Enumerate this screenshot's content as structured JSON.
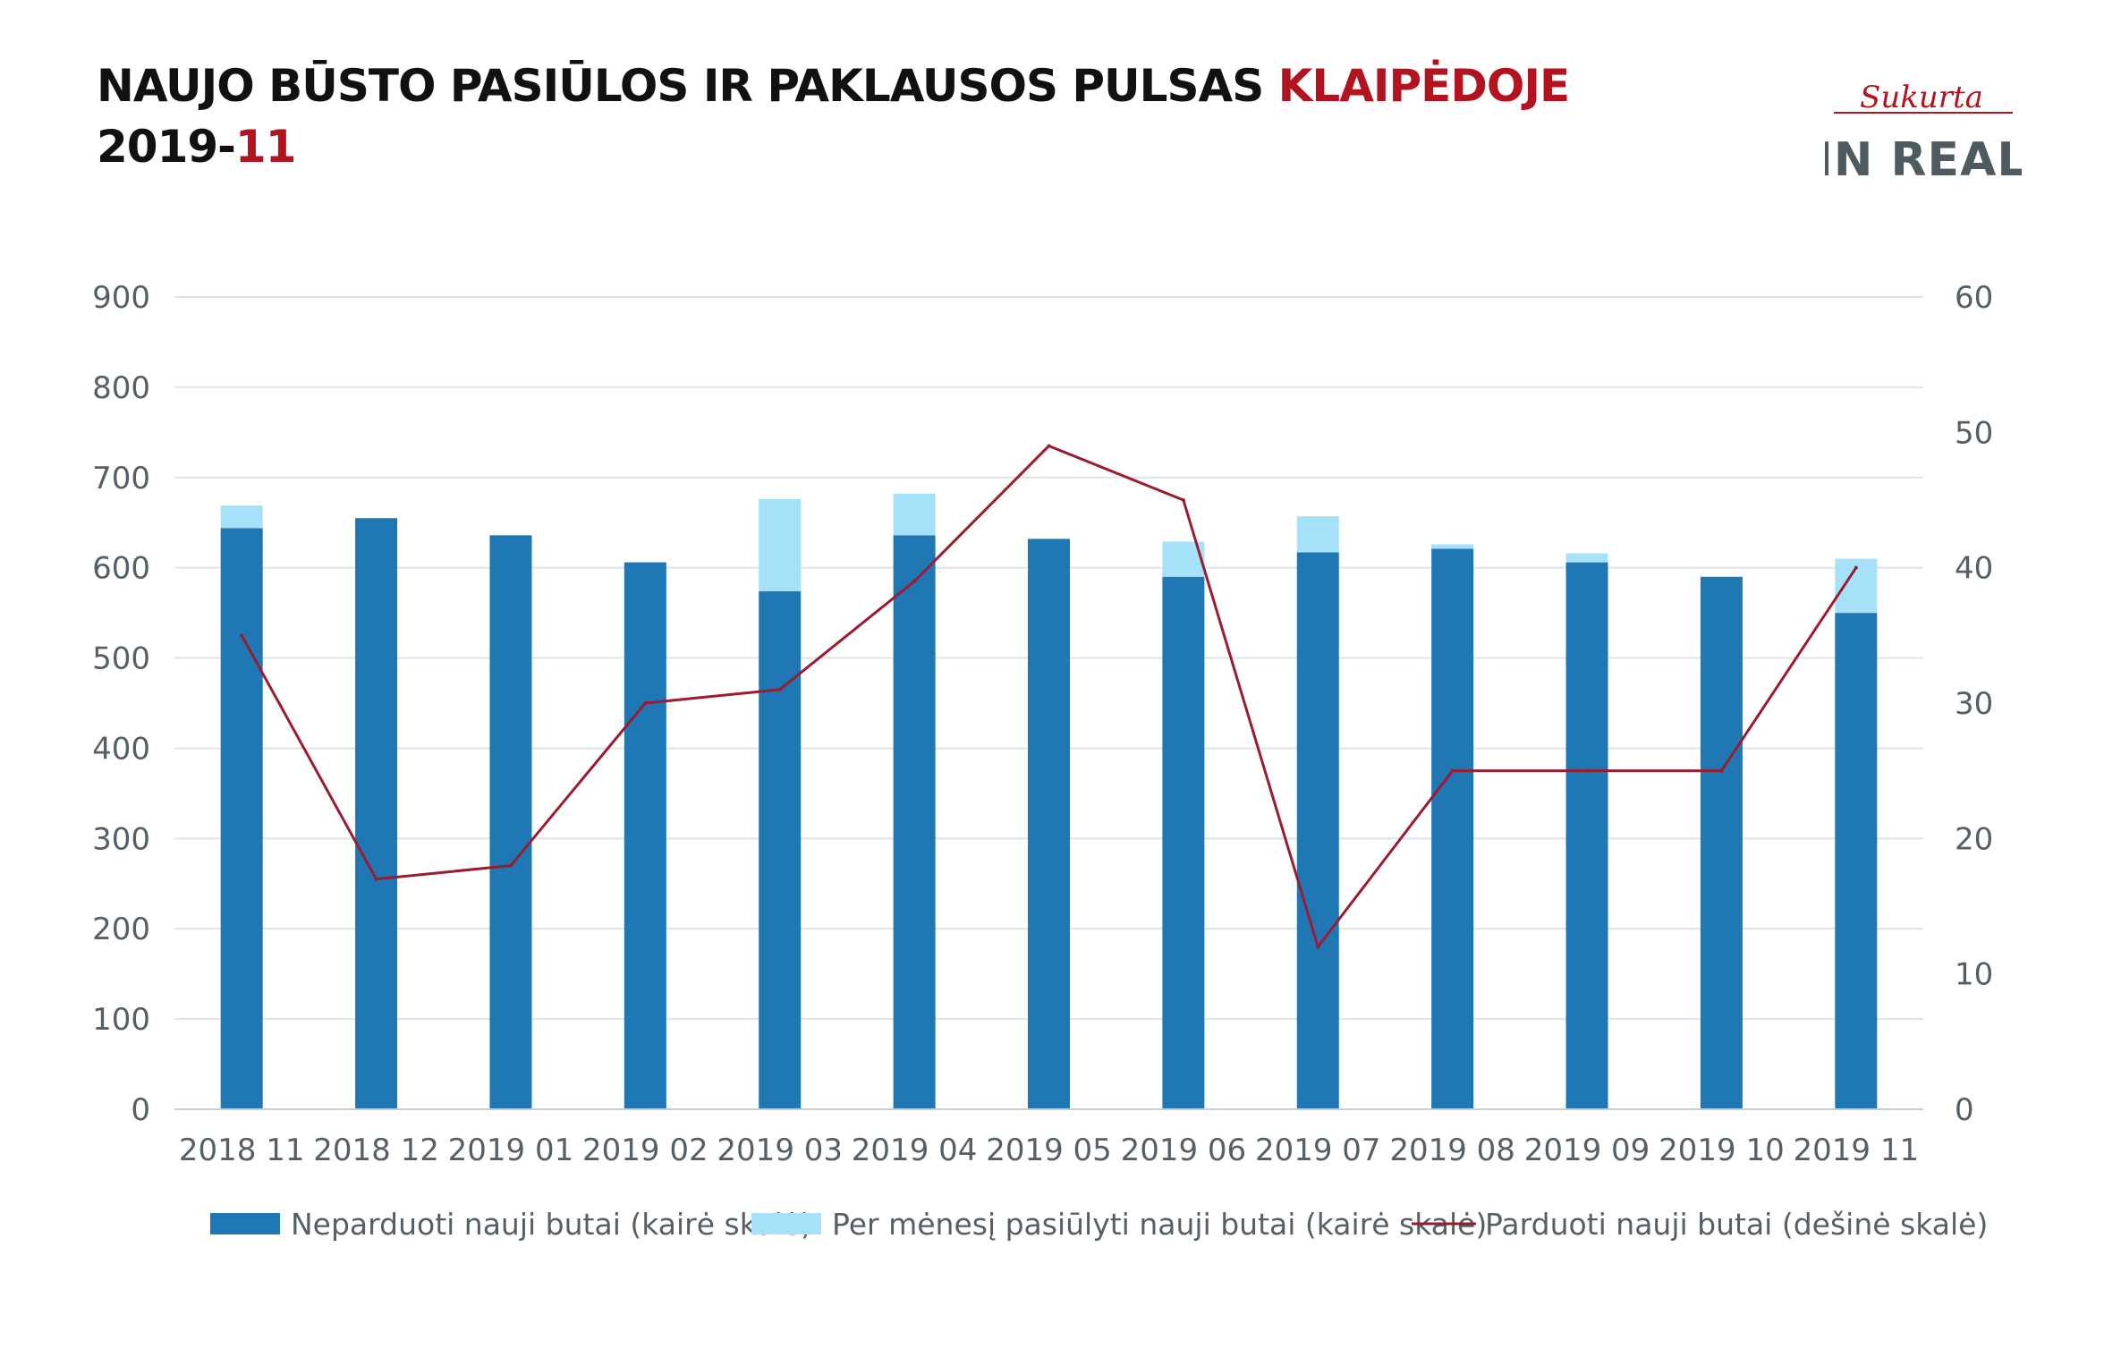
{
  "header": {
    "title_main": "NAUJO BŪSTO PASIŪLOS IR PAKLAUSOS PULSAS ",
    "title_accent": "KLAIPĖDOJE",
    "subtitle_main": "2019-",
    "subtitle_accent": "11"
  },
  "logo": {
    "script_text": "Sukurta",
    "brand_text": "IN REAL",
    "accent_color": "#b3121f",
    "brand_color": "#4d5a60"
  },
  "colors": {
    "unsold": "#1f77b4",
    "offered": "#a6e1fa",
    "sold_line": "#9b1b30",
    "grid": "#dfe3e6",
    "axis_text": "#555f66"
  },
  "chart_data": {
    "type": "bar",
    "categories": [
      "2018 11",
      "2018 12",
      "2019 01",
      "2019 02",
      "2019 03",
      "2019 04",
      "2019 05",
      "2019 06",
      "2019 07",
      "2019 08",
      "2019 09",
      "2019 10",
      "2019 11"
    ],
    "series": [
      {
        "name": "Neparduoti nauji butai (kairė skalė)",
        "type": "bar",
        "stack": "left",
        "axis": "left",
        "values": [
          644,
          655,
          636,
          606,
          574,
          636,
          632,
          590,
          617,
          621,
          606,
          590,
          550
        ]
      },
      {
        "name": "Per mėnesį pasiūlyti nauji butai (kairė skalė)",
        "type": "bar",
        "stack": "left",
        "axis": "left",
        "values": [
          25,
          0,
          0,
          0,
          102,
          46,
          0,
          39,
          40,
          5,
          10,
          0,
          60
        ]
      },
      {
        "name": "Parduoti nauji butai (dešinė skalė)",
        "type": "line",
        "axis": "right",
        "values": [
          35,
          17,
          18,
          30,
          31,
          39,
          49,
          45,
          12,
          25,
          25,
          25,
          40
        ]
      }
    ],
    "left_axis": {
      "min": 0,
      "max": 900,
      "ticks": [
        "0",
        "100",
        "200",
        "300",
        "400",
        "500",
        "600",
        "700",
        "800",
        "900"
      ]
    },
    "right_axis": {
      "min": 0,
      "max": 60,
      "ticks": [
        "0",
        "10",
        "20",
        "30",
        "40",
        "50",
        "60"
      ]
    },
    "grid": true,
    "legend_position": "bottom"
  }
}
